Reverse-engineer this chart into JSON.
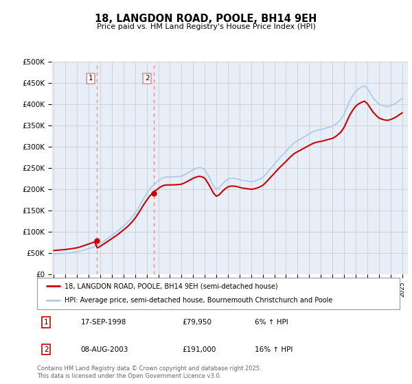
{
  "title": "18, LANGDON ROAD, POOLE, BH14 9EH",
  "subtitle": "Price paid vs. HM Land Registry's House Price Index (HPI)",
  "ylabel_ticks": [
    "£0",
    "£50K",
    "£100K",
    "£150K",
    "£200K",
    "£250K",
    "£300K",
    "£350K",
    "£400K",
    "£450K",
    "£500K"
  ],
  "ytick_values": [
    0,
    50000,
    100000,
    150000,
    200000,
    250000,
    300000,
    350000,
    400000,
    450000,
    500000
  ],
  "ylim": [
    0,
    500000
  ],
  "xlim_start": 1994.8,
  "xlim_end": 2025.5,
  "sale1_date": 1998.71,
  "sale1_price": 79950,
  "sale2_date": 2003.59,
  "sale2_price": 191000,
  "transaction_info": [
    {
      "num": "1",
      "date": "17-SEP-1998",
      "price": "£79,950",
      "change": "6% ↑ HPI"
    },
    {
      "num": "2",
      "date": "08-AUG-2003",
      "price": "£191,000",
      "change": "16% ↑ HPI"
    }
  ],
  "legend_line1": "18, LANGDON ROAD, POOLE, BH14 9EH (semi-detached house)",
  "legend_line2": "HPI: Average price, semi-detached house, Bournemouth Christchurch and Poole",
  "footer": "Contains HM Land Registry data © Crown copyright and database right 2025.\nThis data is licensed under the Open Government Licence v3.0.",
  "line_red": "#cc0000",
  "line_blue": "#aaccee",
  "bg_color": "#ffffff",
  "plot_bg": "#e8eef8",
  "grid_color": "#c8c8c8",
  "vline_color": "#ee8888",
  "marker_color": "#cc0000",
  "years_hpi": [
    1995.0,
    1995.25,
    1995.5,
    1995.75,
    1996.0,
    1996.25,
    1996.5,
    1996.75,
    1997.0,
    1997.25,
    1997.5,
    1997.75,
    1998.0,
    1998.25,
    1998.5,
    1998.75,
    1999.0,
    1999.25,
    1999.5,
    1999.75,
    2000.0,
    2000.25,
    2000.5,
    2000.75,
    2001.0,
    2001.25,
    2001.5,
    2001.75,
    2002.0,
    2002.25,
    2002.5,
    2002.75,
    2003.0,
    2003.25,
    2003.5,
    2003.75,
    2004.0,
    2004.25,
    2004.5,
    2004.75,
    2005.0,
    2005.25,
    2005.5,
    2005.75,
    2006.0,
    2006.25,
    2006.5,
    2006.75,
    2007.0,
    2007.25,
    2007.5,
    2007.75,
    2008.0,
    2008.25,
    2008.5,
    2008.75,
    2009.0,
    2009.25,
    2009.5,
    2009.75,
    2010.0,
    2010.25,
    2010.5,
    2010.75,
    2011.0,
    2011.25,
    2011.5,
    2011.75,
    2012.0,
    2012.25,
    2012.5,
    2012.75,
    2013.0,
    2013.25,
    2013.5,
    2013.75,
    2014.0,
    2014.25,
    2014.5,
    2014.75,
    2015.0,
    2015.25,
    2015.5,
    2015.75,
    2016.0,
    2016.25,
    2016.5,
    2016.75,
    2017.0,
    2017.25,
    2017.5,
    2017.75,
    2018.0,
    2018.25,
    2018.5,
    2018.75,
    2019.0,
    2019.25,
    2019.5,
    2019.75,
    2020.0,
    2020.25,
    2020.5,
    2020.75,
    2021.0,
    2021.25,
    2021.5,
    2021.75,
    2022.0,
    2022.25,
    2022.5,
    2022.75,
    2023.0,
    2023.25,
    2023.5,
    2023.75,
    2024.0,
    2024.25,
    2024.5,
    2024.75,
    2025.0
  ],
  "hpi_values": [
    48000,
    48500,
    49000,
    49500,
    50000,
    50800,
    51500,
    52500,
    53500,
    55000,
    57000,
    59000,
    61000,
    63000,
    65500,
    68000,
    72000,
    77000,
    82000,
    87000,
    92000,
    97000,
    102000,
    108000,
    114000,
    120000,
    127000,
    135000,
    144000,
    155000,
    167000,
    179000,
    190000,
    200000,
    208000,
    214000,
    220000,
    225000,
    228000,
    229000,
    229000,
    229000,
    229500,
    230000,
    231000,
    234000,
    238000,
    242000,
    246000,
    249000,
    251000,
    250000,
    246000,
    235000,
    222000,
    208000,
    200000,
    204000,
    212000,
    219000,
    224000,
    226000,
    226000,
    225000,
    223000,
    221000,
    220000,
    219000,
    218000,
    219000,
    221000,
    224000,
    228000,
    235000,
    243000,
    251000,
    259000,
    267000,
    275000,
    282000,
    289000,
    297000,
    304000,
    310000,
    314000,
    318000,
    322000,
    326000,
    330000,
    334000,
    337000,
    339000,
    340000,
    342000,
    344000,
    346000,
    348000,
    352000,
    358000,
    365000,
    376000,
    392000,
    408000,
    420000,
    430000,
    436000,
    440000,
    443000,
    437000,
    426000,
    415000,
    407000,
    400000,
    397000,
    395000,
    394000,
    396000,
    399000,
    403000,
    408000,
    413000
  ]
}
